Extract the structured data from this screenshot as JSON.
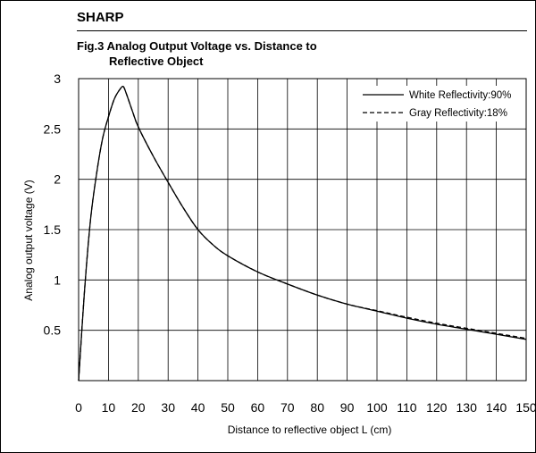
{
  "brand": "SHARP",
  "figure": {
    "title_line1": "Fig.3 Analog Output Voltage vs. Distance to",
    "title_line2": "Reflective Object"
  },
  "chart_data": {
    "type": "line",
    "xlabel": "Distance to reflective object L (cm)",
    "ylabel": "Analog output voltage (V)",
    "xlim": [
      0,
      150
    ],
    "ylim": [
      0,
      3
    ],
    "x_ticks": [
      0,
      10,
      20,
      30,
      40,
      50,
      60,
      70,
      80,
      90,
      100,
      110,
      120,
      130,
      140,
      150
    ],
    "y_ticks": [
      0.5,
      1,
      1.5,
      2,
      2.5,
      3
    ],
    "grid": true,
    "legend_position": "top-right",
    "series": [
      {
        "name": "White Reflectivity:90%",
        "style": "solid",
        "color": "#000000",
        "x": [
          0,
          2,
          4,
          6,
          8,
          10,
          12,
          14,
          15,
          16,
          18,
          20,
          25,
          30,
          35,
          40,
          45,
          50,
          60,
          70,
          80,
          90,
          100,
          110,
          120,
          130,
          140,
          150
        ],
        "y": [
          0,
          0.9,
          1.6,
          2.05,
          2.4,
          2.62,
          2.8,
          2.9,
          2.92,
          2.85,
          2.68,
          2.52,
          2.23,
          1.97,
          1.72,
          1.5,
          1.35,
          1.24,
          1.08,
          0.96,
          0.85,
          0.76,
          0.69,
          0.62,
          0.56,
          0.51,
          0.46,
          0.41
        ]
      },
      {
        "name": "Gray Reflectivity:18%",
        "style": "dashed",
        "color": "#000000",
        "x": [
          0,
          2,
          4,
          6,
          8,
          10,
          12,
          14,
          15,
          16,
          18,
          20,
          25,
          30,
          35,
          40,
          45,
          50,
          60,
          70,
          80,
          90,
          100,
          110,
          120,
          130,
          140,
          150
        ],
        "y": [
          0,
          0.9,
          1.6,
          2.05,
          2.4,
          2.62,
          2.8,
          2.9,
          2.92,
          2.85,
          2.68,
          2.52,
          2.23,
          1.97,
          1.72,
          1.5,
          1.35,
          1.24,
          1.08,
          0.96,
          0.85,
          0.76,
          0.695,
          0.63,
          0.57,
          0.52,
          0.47,
          0.42
        ]
      }
    ]
  }
}
